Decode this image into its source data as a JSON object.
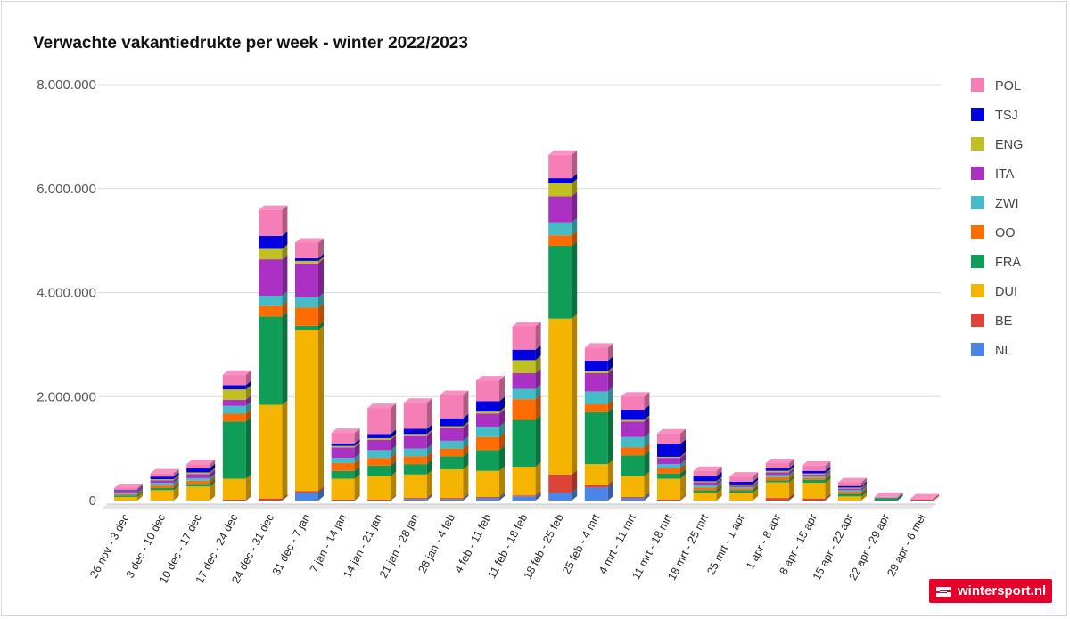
{
  "chart_data": {
    "type": "bar",
    "stacked": true,
    "title": "Verwachte vakantiedrukte per week - winter 2022/2023",
    "xlabel": "",
    "ylabel": "",
    "ylim": [
      0,
      8000000
    ],
    "yticks": [
      0,
      2000000,
      4000000,
      6000000,
      8000000
    ],
    "ytick_labels": [
      "0",
      "2.000.000",
      "4.000.000",
      "6.000.000",
      "8.000.000"
    ],
    "grid": true,
    "legend_position": "right",
    "categories": [
      "26 nov - 3 dec",
      "3 dec - 10 dec",
      "10 dec - 17 dec",
      "17 dec - 24 dec",
      "24 dec - 31 dec",
      "31 dec - 7 jan",
      "7 jan - 14 jan",
      "14 jan - 21 jan",
      "21 jan - 28 jan",
      "28 jan - 4 feb",
      "4 feb - 11 feb",
      "11 feb - 18 feb",
      "18 feb - 25 feb",
      "25 feb - 4 mrt",
      "4 mrt - 11 mrt",
      "11 mrt - 18 mrt",
      "18 mrt - 25 mrt",
      "25 mrt - 1 apr",
      "1 apr - 8 apr",
      "8 apr - 15 apr",
      "15 apr - 22 apr",
      "22 apr - 29 apr",
      "29 apr - 6 mei"
    ],
    "series": [
      {
        "name": "NL",
        "color": "#4a86e8",
        "values": [
          0,
          0,
          0,
          0,
          0,
          150000,
          0,
          0,
          30000,
          30000,
          50000,
          80000,
          150000,
          250000,
          50000,
          0,
          0,
          0,
          0,
          0,
          0,
          0,
          0
        ]
      },
      {
        "name": "BE",
        "color": "#db4437",
        "values": [
          0,
          0,
          0,
          20000,
          40000,
          30000,
          20000,
          20000,
          20000,
          20000,
          20000,
          20000,
          350000,
          50000,
          20000,
          20000,
          0,
          0,
          50000,
          40000,
          0,
          0,
          20000
        ]
      },
      {
        "name": "DUI",
        "color": "#f4b400",
        "values": [
          70000,
          200000,
          270000,
          400000,
          1800000,
          3100000,
          400000,
          450000,
          450000,
          550000,
          500000,
          550000,
          3000000,
          400000,
          400000,
          400000,
          150000,
          150000,
          300000,
          300000,
          80000,
          0,
          0
        ]
      },
      {
        "name": "FRA",
        "color": "#0f9d58",
        "values": [
          30000,
          40000,
          50000,
          1100000,
          1700000,
          80000,
          150000,
          200000,
          200000,
          250000,
          400000,
          900000,
          1400000,
          1000000,
          400000,
          100000,
          50000,
          50000,
          40000,
          60000,
          50000,
          50000,
          0
        ]
      },
      {
        "name": "OO",
        "color": "#ff6d00",
        "values": [
          20000,
          50000,
          60000,
          150000,
          200000,
          350000,
          150000,
          150000,
          150000,
          150000,
          250000,
          400000,
          200000,
          150000,
          150000,
          100000,
          50000,
          30000,
          60000,
          40000,
          40000,
          0,
          0
        ]
      },
      {
        "name": "ZWI",
        "color": "#46bdc6",
        "values": [
          20000,
          50000,
          50000,
          150000,
          200000,
          200000,
          100000,
          150000,
          150000,
          150000,
          200000,
          200000,
          250000,
          250000,
          200000,
          80000,
          50000,
          30000,
          40000,
          30000,
          30000,
          0,
          0
        ]
      },
      {
        "name": "ITA",
        "color": "#ab30c4",
        "values": [
          30000,
          50000,
          80000,
          120000,
          700000,
          650000,
          200000,
          200000,
          250000,
          250000,
          250000,
          300000,
          500000,
          350000,
          300000,
          120000,
          50000,
          30000,
          50000,
          30000,
          30000,
          0,
          0
        ]
      },
      {
        "name": "ENG",
        "color": "#c0c020",
        "values": [
          10000,
          20000,
          30000,
          200000,
          200000,
          50000,
          30000,
          30000,
          30000,
          30000,
          40000,
          250000,
          250000,
          40000,
          30000,
          20000,
          20000,
          20000,
          30000,
          20000,
          20000,
          0,
          0
        ]
      },
      {
        "name": "TSJ",
        "color": "#0000e0",
        "values": [
          20000,
          50000,
          80000,
          80000,
          250000,
          50000,
          50000,
          80000,
          100000,
          150000,
          200000,
          200000,
          100000,
          200000,
          200000,
          250000,
          100000,
          50000,
          50000,
          50000,
          30000,
          0,
          0
        ]
      },
      {
        "name": "POL",
        "color": "#f57eb6",
        "values": [
          40000,
          60000,
          80000,
          200000,
          500000,
          300000,
          200000,
          500000,
          500000,
          450000,
          400000,
          450000,
          450000,
          250000,
          250000,
          200000,
          100000,
          100000,
          100000,
          100000,
          70000,
          20000,
          20000
        ]
      }
    ]
  },
  "brand": {
    "text": "wintersport.nl"
  }
}
